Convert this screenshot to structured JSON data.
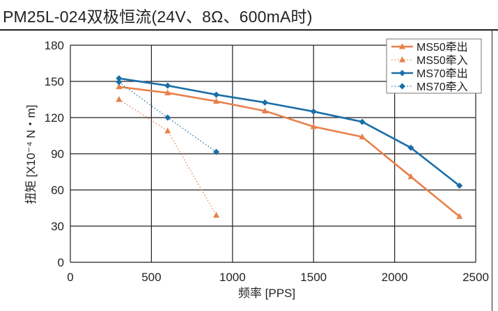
{
  "chart_data": {
    "type": "line",
    "title": "PM25L-024双极恒流(24V、8Ω、600mA时)",
    "xlabel": "频率 [PPS]",
    "ylabel": "扭矩 [X10⁻⁴ N・m]",
    "xlim": [
      0,
      2500
    ],
    "ylim": [
      0,
      180
    ],
    "xticks": [
      0,
      500,
      1000,
      1500,
      2000,
      2500
    ],
    "yticks": [
      0,
      30,
      60,
      90,
      120,
      150,
      180
    ],
    "grid": true,
    "legend_position": "top-right",
    "series": [
      {
        "name": "MS50牵出",
        "color": "#e8804a",
        "style": "solid",
        "marker": "triangle",
        "x": [
          300,
          600,
          900,
          1200,
          1500,
          1800,
          2100,
          2400
        ],
        "y": [
          145.5,
          140.5,
          133.5,
          125.5,
          112.5,
          104,
          71,
          38
        ]
      },
      {
        "name": "MS50牵入",
        "color": "#e8804a",
        "style": "dotted",
        "marker": "triangle",
        "x": [
          300,
          600,
          900
        ],
        "y": [
          135,
          109,
          39
        ]
      },
      {
        "name": "MS70牵出",
        "color": "#1a6ea8",
        "style": "solid",
        "marker": "diamond",
        "x": [
          300,
          600,
          900,
          1200,
          1500,
          1800,
          2100,
          2400
        ],
        "y": [
          152.5,
          146.5,
          139,
          132.5,
          125,
          116.5,
          95,
          63.5
        ]
      },
      {
        "name": "MS70牵入",
        "color": "#1a6ea8",
        "style": "dotted",
        "marker": "diamond",
        "x": [
          300,
          600,
          900
        ],
        "y": [
          149.5,
          120,
          91.5
        ]
      }
    ]
  }
}
